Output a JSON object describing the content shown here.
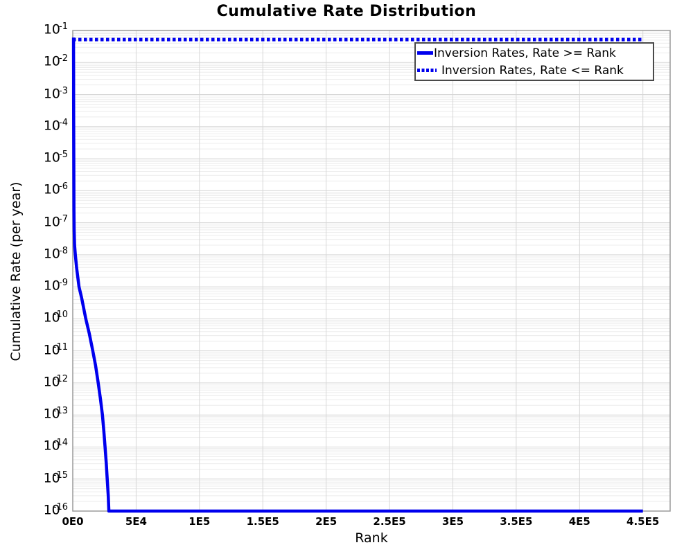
{
  "title": "Cumulative Rate Distribution",
  "chart_data": {
    "type": "line",
    "title": "Cumulative Rate Distribution",
    "xlabel": "Rank",
    "ylabel": "Cumulative Rate (per year)",
    "grid": {
      "major": true,
      "minor": true
    },
    "legend_position": "top-right",
    "x_axis": {
      "min": 0,
      "max": 471500,
      "ticks": [
        {
          "value": 0,
          "label": "0E0"
        },
        {
          "value": 50000,
          "label": "5E4"
        },
        {
          "value": 100000,
          "label": "1E5"
        },
        {
          "value": 150000,
          "label": "1.5E5"
        },
        {
          "value": 200000,
          "label": "2E5"
        },
        {
          "value": 250000,
          "label": "2.5E5"
        },
        {
          "value": 300000,
          "label": "3E5"
        },
        {
          "value": 350000,
          "label": "3.5E5"
        },
        {
          "value": 400000,
          "label": "4E5"
        },
        {
          "value": 450000,
          "label": "4.5E5"
        }
      ]
    },
    "y_axis": {
      "scale": "log",
      "max_exp": -1,
      "min_exp": -16,
      "tick_labels": [
        "10^-1",
        "10^-2",
        "10^-3",
        "10^-4",
        "10^-5",
        "10^-6",
        "10^-7",
        "10^-8",
        "10^-9",
        "10^-10",
        "10^-11",
        "10^-12",
        "10^-13",
        "10^-14",
        "10^-15",
        "10^-16"
      ]
    },
    "series": [
      {
        "name": "Inversion Rates, Rate >= Rank",
        "style": "solid",
        "color": "#0000ee",
        "points": [
          [
            600,
            0.06
          ],
          [
            620,
            0.02
          ],
          [
            650,
            0.004
          ],
          [
            680,
            0.0008
          ],
          [
            720,
            0.00015
          ],
          [
            760,
            3e-05
          ],
          [
            820,
            6e-06
          ],
          [
            880,
            1.2e-06
          ],
          [
            950,
            2.5e-07
          ],
          [
            1100,
            6e-08
          ],
          [
            1400,
            2e-08
          ],
          [
            2000,
            1e-08
          ],
          [
            3000,
            4e-09
          ],
          [
            4900,
            1e-09
          ],
          [
            7000,
            4.5e-10
          ],
          [
            10300,
            1e-10
          ],
          [
            13000,
            3.5e-11
          ],
          [
            15800,
            1e-11
          ],
          [
            18000,
            3.5e-12
          ],
          [
            20100,
            1e-12
          ],
          [
            21800,
            3.2e-13
          ],
          [
            23400,
            1e-13
          ],
          [
            24500,
            3.2e-14
          ],
          [
            25500,
            1e-14
          ],
          [
            26400,
            3.2e-15
          ],
          [
            27200,
            1e-15
          ],
          [
            28000,
            3e-16
          ],
          [
            28500,
            1e-16
          ],
          [
            450000,
            1e-16
          ]
        ]
      },
      {
        "name": "Inversion Rates, Rate <= Rank",
        "style": "dotted",
        "color": "#0000ee",
        "points": [
          [
            0,
            0.052
          ],
          [
            450000,
            0.052
          ]
        ]
      }
    ],
    "colors": {
      "line": "#0000ee",
      "grid_major": "#d6d6d6",
      "grid_minor": "#ececec",
      "border": "#9a9a9a",
      "legend_border": "#4a4a4a"
    }
  }
}
